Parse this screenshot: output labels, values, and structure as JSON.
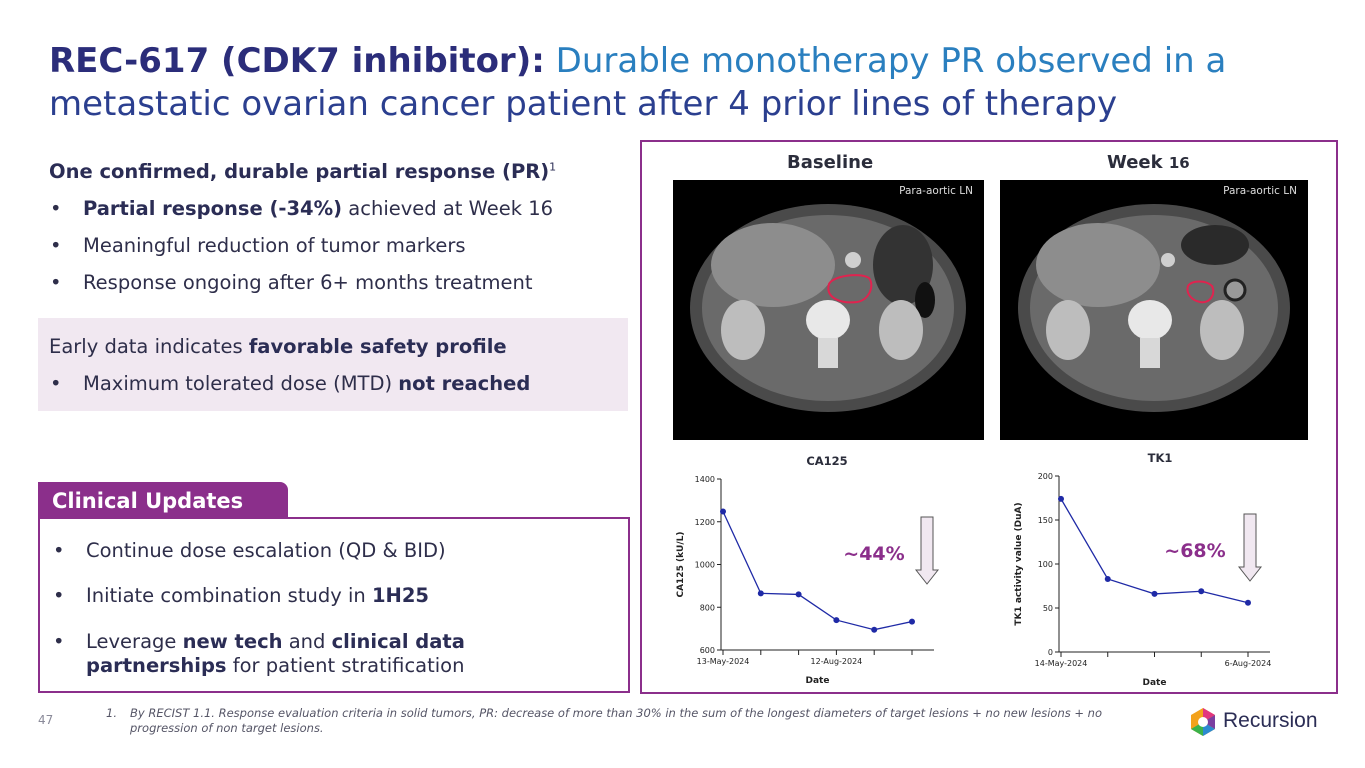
{
  "title": {
    "bold": "REC-617 (CDK7 inhibitor):",
    "line1_rest": " Durable monotherapy PR observed in a",
    "line2": "metastatic ovarian cancer patient after 4 prior lines of therapy"
  },
  "response": {
    "heading": "One confirmed, durable partial response (PR)",
    "heading_sup": "1",
    "bullets": [
      {
        "bold": "Partial response (-34%)",
        "rest": " achieved at Week 16"
      },
      {
        "bold": "",
        "rest": "Meaningful reduction of tumor markers"
      },
      {
        "bold": "",
        "rest": "Response ongoing after 6+ months treatment"
      }
    ]
  },
  "safety": {
    "line_prefix": "Early data indicates ",
    "line_bold": "favorable safety profile",
    "bullet_prefix": "Maximum tolerated dose (MTD) ",
    "bullet_bold": "not reached"
  },
  "clinical_updates": {
    "tab_label": "Clinical Updates",
    "b1": "Continue dose escalation (QD & BID)",
    "b2_prefix": "Initiate combination study in ",
    "b2_bold": "1H25",
    "b3_prefix": "Leverage ",
    "b3_bold1": "new tech",
    "b3_mid": " and ",
    "b3_bold2": "clinical data",
    "b3_line2_bold": "partnerships",
    "b3_line2_rest": " for patient stratification"
  },
  "scans": {
    "baseline_label": "Baseline",
    "week_label_prefix": "Week ",
    "week_label_num": "16",
    "baseline_tag": "Para-aortic LN",
    "week_tag": "Para-aortic LN"
  },
  "bullet_glyph": "•",
  "footnote": {
    "num": "1.",
    "text": "By RECIST 1.1. Response evaluation criteria in solid tumors, PR: decrease of more than 30% in the sum of the longest diameters of target lesions + no new lesions + no progression of non target lesions."
  },
  "page_number": "47",
  "logo_text": "Recursion",
  "colors": {
    "accent": "#8b2f8b",
    "series": "#1f2aa6",
    "title_dark": "#2b2d7a",
    "title_blue": "#2a7fbf"
  },
  "chart_data": [
    {
      "type": "line",
      "title": "CA125",
      "xlabel": "Date",
      "ylabel": "CA125 (kU/L)",
      "ylim": [
        600,
        1400
      ],
      "yticks": [
        600,
        800,
        1000,
        1200,
        1400
      ],
      "xtick_labels": [
        "13-May-2024",
        "12-Aug-2024"
      ],
      "values": [
        1248,
        865,
        860,
        740,
        695,
        733
      ],
      "annotation": "~44%",
      "grid": false
    },
    {
      "type": "line",
      "title": "TK1",
      "xlabel": "Date",
      "ylabel": "TK1 activity value (DuA)",
      "ylim": [
        0,
        200
      ],
      "yticks": [
        0,
        50,
        100,
        150,
        200
      ],
      "xtick_labels": [
        "14-May-2024",
        "6-Aug-2024"
      ],
      "values": [
        174,
        83,
        66,
        69,
        56
      ],
      "annotation": "~68%",
      "grid": false
    }
  ]
}
